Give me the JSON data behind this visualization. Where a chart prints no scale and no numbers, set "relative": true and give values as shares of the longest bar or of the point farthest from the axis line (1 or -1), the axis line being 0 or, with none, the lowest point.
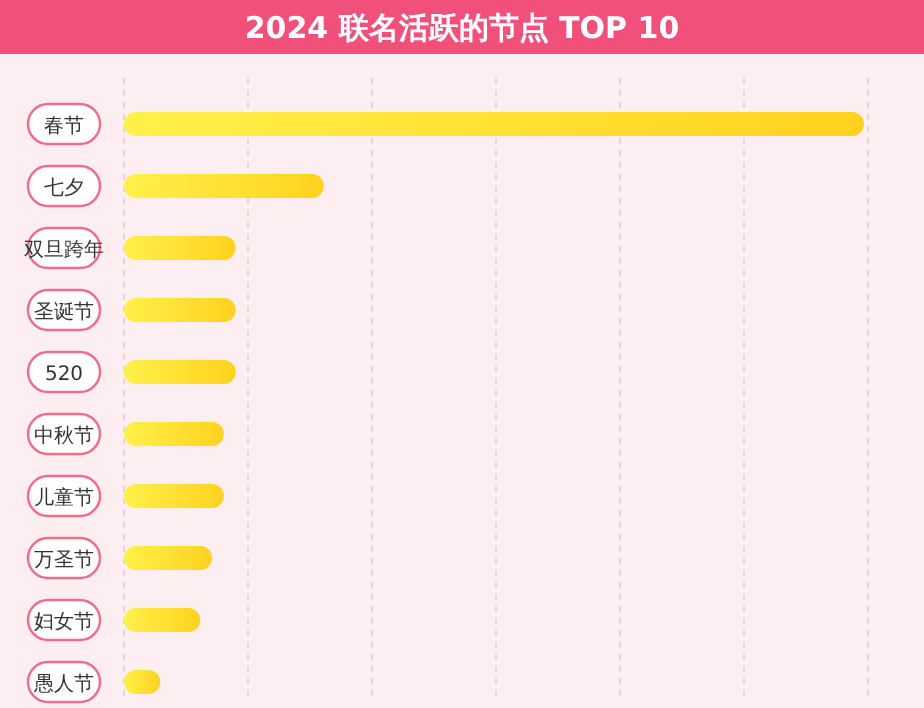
{
  "chart_data": {
    "type": "bar",
    "orientation": "horizontal",
    "relative": true,
    "title": "2024 联名活跃的节点 TOP 10",
    "categories": [
      "春节",
      "七夕",
      "双旦跨年",
      "圣诞节",
      "520",
      "中秋节",
      "儿童节",
      "万圣节",
      "妇女节",
      "愚人节"
    ],
    "values": [
      1,
      0.27,
      0.151,
      0.151,
      0.151,
      0.135,
      0.135,
      0.119,
      0.103,
      0.049
    ],
    "color": "#ffd21e",
    "grid": "x"
  }
}
